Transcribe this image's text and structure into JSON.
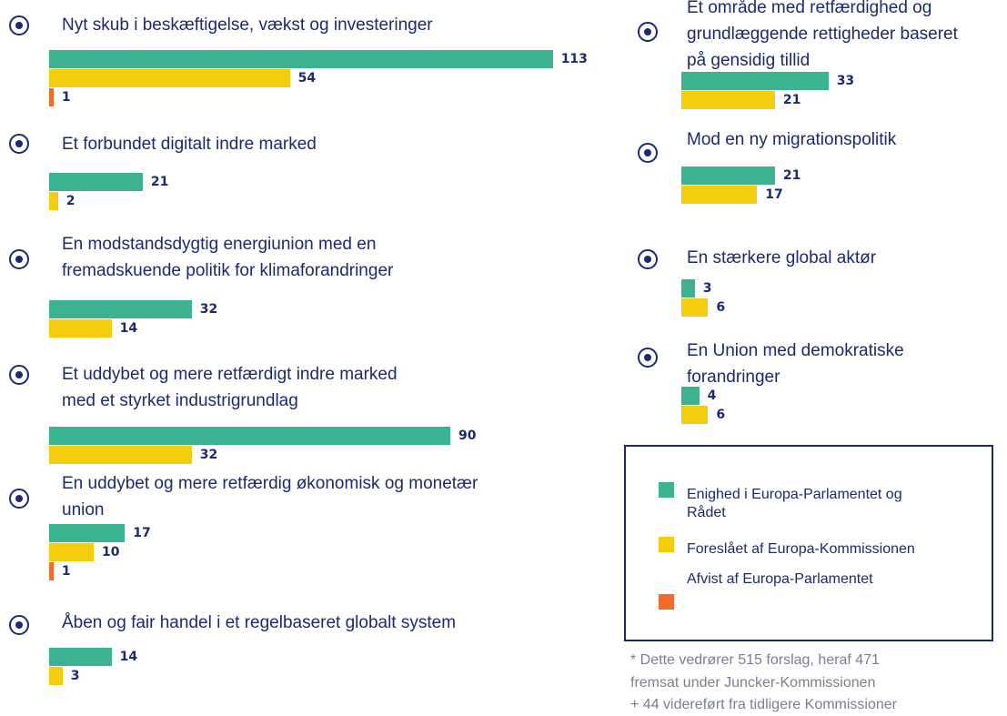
{
  "chart_data": {
    "type": "bar",
    "orientation": "horizontal",
    "categories": [
      "Nyt skub i beskæftigelse, vækst og investeringer",
      "Et forbundet digitalt indre marked",
      "En modstandsdygtig energiunion med en\nfremadskuende politik for klimaforandringer",
      "Et uddybet og mere retfærdigt indre marked\nmed et styrket industrigrundlag",
      "En uddybet og mere retfærdig økonomisk og monetær\nunion",
      "Åben og fair handel i et regelbaseret globalt system",
      "Et område med retfærdighed og\ngrundlæggende rettigheder baseret\npå gensidig tillid",
      "Mod en ny migrationspolitik",
      "En stærkere global aktør",
      "En Union med demokratiske\nforandringer"
    ],
    "series": [
      {
        "name": "Enighed i Europa-Parlamentet og\nRådet",
        "color": "#3bb391",
        "values": [
          113,
          21,
          32,
          90,
          17,
          14,
          33,
          21,
          3,
          4
        ]
      },
      {
        "name": "Foreslået af Europa-Kommissionen",
        "color": "#f4cd0e",
        "values": [
          54,
          2,
          14,
          32,
          10,
          3,
          21,
          17,
          6,
          6
        ]
      },
      {
        "name": "Afvist af Europa-Parlamentet",
        "color": "#f26b2a",
        "values": [
          1,
          null,
          null,
          null,
          1,
          null,
          null,
          null,
          null,
          null
        ]
      }
    ],
    "footnote": "* Dette vedrører 515 forslag, heraf 471\nfremsat under Juncker-Kommissionen\n+ 44 videreført fra tidligere Kommissioner"
  }
}
